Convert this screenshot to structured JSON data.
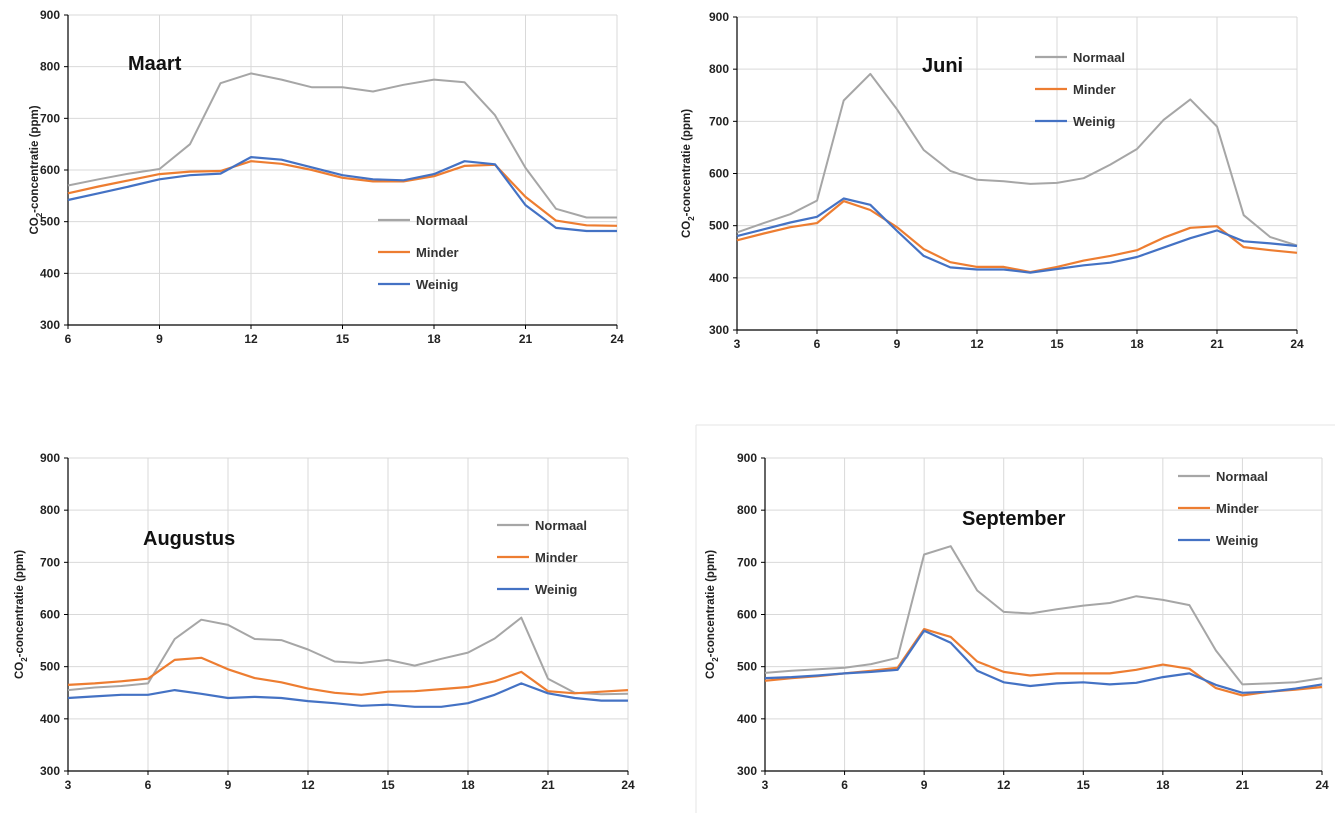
{
  "colors": {
    "Normaal": "#a6a6a6",
    "Minder": "#ed7d31",
    "Weinig": "#4472c4",
    "grid": "#d9d9d9",
    "axis": "#000000"
  },
  "chart_data": [
    {
      "type": "line",
      "title": "Maart",
      "ylabel_pre": "CO",
      "ylabel_sub": "2",
      "ylabel_post": "-concentratie (ppm)",
      "xlim": [
        6,
        24
      ],
      "ylim": [
        300,
        900
      ],
      "xticks": [
        "6",
        "9",
        "12",
        "15",
        "18",
        "21",
        "24"
      ],
      "yticks": [
        "300",
        "400",
        "500",
        "600",
        "700",
        "800",
        "900"
      ],
      "x": [
        6,
        7,
        8,
        9,
        10,
        11,
        12,
        13,
        14,
        15,
        16,
        17,
        18,
        19,
        20,
        21,
        22,
        23,
        24
      ],
      "series": [
        {
          "name": "Normaal",
          "values": [
            570,
            582,
            593,
            602,
            650,
            768,
            787,
            775,
            760,
            760,
            752,
            765,
            775,
            770,
            706,
            604,
            525,
            508,
            508
          ]
        },
        {
          "name": "Minder",
          "values": [
            555,
            568,
            580,
            592,
            597,
            598,
            617,
            612,
            600,
            585,
            578,
            578,
            588,
            608,
            610,
            548,
            502,
            493,
            492
          ]
        },
        {
          "name": "Weinig",
          "values": [
            542,
            555,
            568,
            582,
            590,
            593,
            625,
            620,
            605,
            590,
            582,
            580,
            592,
            617,
            611,
            532,
            488,
            482,
            482
          ]
        }
      ]
    },
    {
      "type": "line",
      "title": "Juni",
      "ylabel_pre": "CO",
      "ylabel_sub": "2",
      "ylabel_post": "-concentratie (ppm)",
      "xlim": [
        3,
        24
      ],
      "ylim": [
        300,
        900
      ],
      "xticks": [
        "3",
        "6",
        "9",
        "12",
        "15",
        "18",
        "21",
        "24"
      ],
      "yticks": [
        "300",
        "400",
        "500",
        "600",
        "700",
        "800",
        "900"
      ],
      "x": [
        3,
        4,
        5,
        6,
        7,
        8,
        9,
        10,
        11,
        12,
        13,
        14,
        15,
        16,
        17,
        18,
        19,
        20,
        21,
        22,
        23,
        24
      ],
      "series": [
        {
          "name": "Normaal",
          "values": [
            487,
            505,
            522,
            548,
            740,
            791,
            723,
            645,
            605,
            588,
            585,
            580,
            582,
            591,
            617,
            647,
            703,
            742,
            690,
            520,
            478,
            462
          ]
        },
        {
          "name": "Minder",
          "values": [
            472,
            485,
            497,
            505,
            547,
            530,
            497,
            455,
            430,
            421,
            421,
            411,
            421,
            433,
            442,
            453,
            477,
            496,
            499,
            459,
            453,
            448
          ]
        },
        {
          "name": "Weinig",
          "values": [
            480,
            493,
            506,
            517,
            552,
            540,
            490,
            442,
            420,
            416,
            416,
            410,
            417,
            424,
            429,
            440,
            458,
            476,
            491,
            470,
            466,
            461
          ]
        }
      ]
    },
    {
      "type": "line",
      "title": "Augustus",
      "ylabel_pre": "CO",
      "ylabel_sub": "2",
      "ylabel_post": "-concentratie (ppm)",
      "xlim": [
        3,
        24
      ],
      "ylim": [
        300,
        900
      ],
      "xticks": [
        "3",
        "6",
        "9",
        "12",
        "15",
        "18",
        "21",
        "24"
      ],
      "yticks": [
        "300",
        "400",
        "500",
        "600",
        "700",
        "800",
        "900"
      ],
      "x": [
        3,
        4,
        5,
        6,
        7,
        8,
        9,
        10,
        11,
        12,
        13,
        14,
        15,
        16,
        17,
        18,
        19,
        20,
        21,
        22,
        23,
        24
      ],
      "series": [
        {
          "name": "Normaal",
          "values": [
            455,
            460,
            463,
            468,
            553,
            590,
            580,
            553,
            551,
            533,
            510,
            507,
            513,
            502,
            515,
            527,
            554,
            594,
            477,
            450,
            447,
            448
          ]
        },
        {
          "name": "Minder",
          "values": [
            465,
            468,
            472,
            477,
            513,
            517,
            495,
            478,
            470,
            458,
            450,
            446,
            452,
            453,
            457,
            461,
            472,
            490,
            453,
            449,
            452,
            455
          ]
        },
        {
          "name": "Weinig",
          "values": [
            440,
            443,
            446,
            446,
            455,
            448,
            440,
            442,
            440,
            434,
            430,
            425,
            427,
            423,
            423,
            430,
            446,
            468,
            449,
            440,
            435,
            435
          ]
        }
      ]
    },
    {
      "type": "line",
      "title": "September",
      "ylabel_pre": "CO",
      "ylabel_sub": "2",
      "ylabel_post": "-concentratie  (ppm)",
      "xlim": [
        3,
        24
      ],
      "ylim": [
        300,
        900
      ],
      "xticks": [
        "3",
        "6",
        "9",
        "12",
        "15",
        "18",
        "21",
        "24"
      ],
      "yticks": [
        "300",
        "400",
        "500",
        "600",
        "700",
        "800",
        "900"
      ],
      "x": [
        3,
        4,
        5,
        6,
        7,
        8,
        9,
        10,
        11,
        12,
        13,
        14,
        15,
        16,
        17,
        18,
        19,
        20,
        21,
        22,
        23,
        24
      ],
      "series": [
        {
          "name": "Normaal",
          "values": [
            488,
            492,
            495,
            498,
            505,
            517,
            715,
            731,
            646,
            605,
            602,
            610,
            617,
            622,
            635,
            628,
            618,
            531,
            466,
            468,
            470,
            478
          ]
        },
        {
          "name": "Minder",
          "values": [
            473,
            478,
            482,
            487,
            492,
            498,
            572,
            557,
            510,
            490,
            483,
            487,
            487,
            487,
            494,
            504,
            496,
            459,
            445,
            452,
            456,
            461
          ]
        },
        {
          "name": "Weinig",
          "values": [
            478,
            480,
            483,
            487,
            490,
            494,
            569,
            546,
            492,
            470,
            463,
            468,
            470,
            466,
            469,
            480,
            487,
            465,
            450,
            452,
            458,
            466
          ]
        }
      ]
    }
  ]
}
